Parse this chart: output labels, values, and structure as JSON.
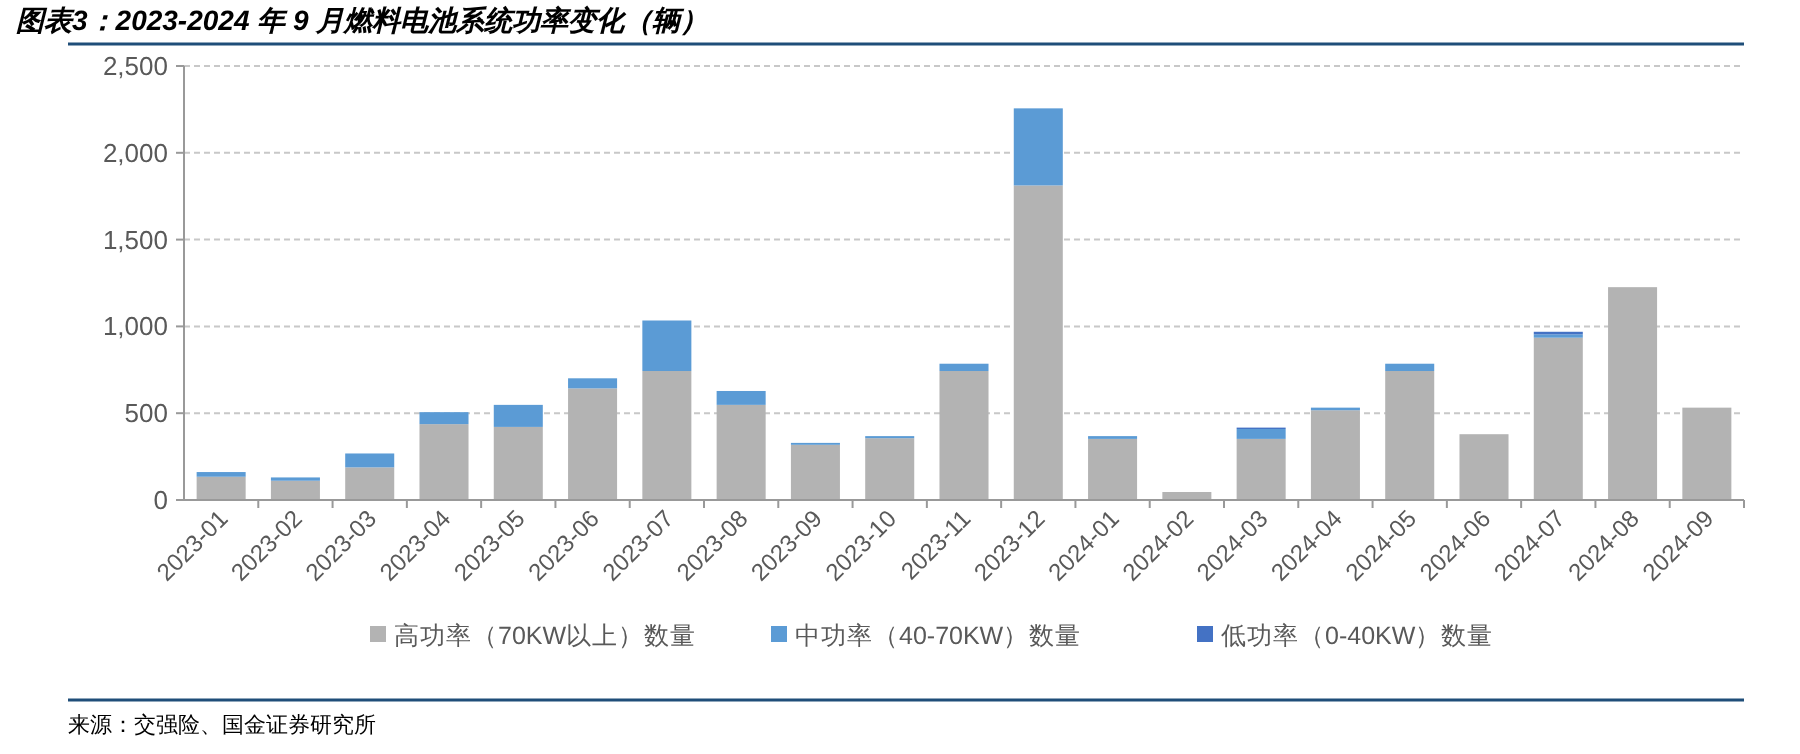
{
  "chart_data": {
    "type": "bar",
    "stacked": true,
    "title": "图表3：2023-2024 年 9 月燃料电池系统功率变化（辆）",
    "categories": [
      "2023-01",
      "2023-02",
      "2023-03",
      "2023-04",
      "2023-05",
      "2023-06",
      "2023-07",
      "2023-08",
      "2023-09",
      "2023-10",
      "2023-11",
      "2023-12",
      "2024-01",
      "2024-02",
      "2024-03",
      "2024-04",
      "2024-05",
      "2024-06",
      "2024-07",
      "2024-08",
      "2024-09"
    ],
    "series": [
      {
        "name": "高功率（70KW以上）数量",
        "color": "#b3b3b3",
        "values": [
          134,
          111,
          188,
          437,
          421,
          643,
          743,
          548,
          318,
          356,
          743,
          1812,
          352,
          46,
          352,
          517,
          743,
          379,
          935,
          1226,
          532
        ]
      },
      {
        "name": "中功率（40-70KW）数量",
        "color": "#5b9bd5",
        "values": [
          27,
          19,
          80,
          69,
          127,
          58,
          291,
          80,
          11,
          12,
          42,
          444,
          16,
          null,
          57,
          15,
          42,
          null,
          19,
          null,
          null
        ]
      },
      {
        "name": "低功率（0-40KW）数量",
        "color": "#4472c4",
        "values": [
          null,
          null,
          null,
          null,
          null,
          null,
          null,
          null,
          null,
          null,
          null,
          null,
          null,
          null,
          8,
          null,
          null,
          null,
          15,
          null,
          null
        ]
      }
    ],
    "ylim": [
      0,
      2500
    ],
    "yticks": [
      0,
      {
        "value": 500,
        "label": "500"
      },
      {
        "value": 1000,
        "label": "1,000"
      },
      {
        "value": 1500,
        "label": "1,500"
      },
      {
        "value": 2000,
        "label": "2,000"
      },
      {
        "value": 2500,
        "label": "2,500"
      }
    ],
    "grid": "y",
    "legend": "bottom",
    "annotations": [
      "来源：交强险、国金证券研究所"
    ]
  }
}
